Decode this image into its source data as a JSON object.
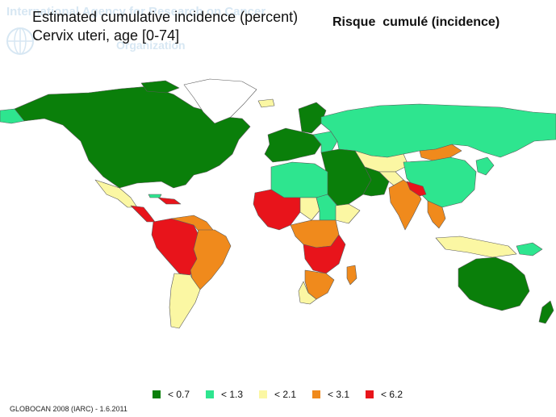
{
  "watermark": {
    "org_line1": "International Agency for Research on Cancer",
    "org_line2": "Organization"
  },
  "title": {
    "line1": "Estimated cumulative incidence (percent)",
    "line2": "Cervix uteri, age [0-74]"
  },
  "subtitle_fr": "Risque  cumulé (incidence)",
  "legend": [
    {
      "label": "< 0.7",
      "color": "#0a7f0a"
    },
    {
      "label": "< 1.3",
      "color": "#2ee58f"
    },
    {
      "label": "< 2.1",
      "color": "#fbf7a3"
    },
    {
      "label": "< 3.1",
      "color": "#f08a1c"
    },
    {
      "label": "< 6.2",
      "color": "#e8141b"
    }
  ],
  "source": "GLOBOCAN 2008 (IARC) - 1.6.2011",
  "map_colors": {
    "c1": "#0a7f0a",
    "c2": "#2ee58f",
    "c3": "#fbf7a3",
    "c4": "#f08a1c",
    "c5": "#e8141b",
    "border": "#5a5a5a",
    "greenland": "#ffffff"
  }
}
